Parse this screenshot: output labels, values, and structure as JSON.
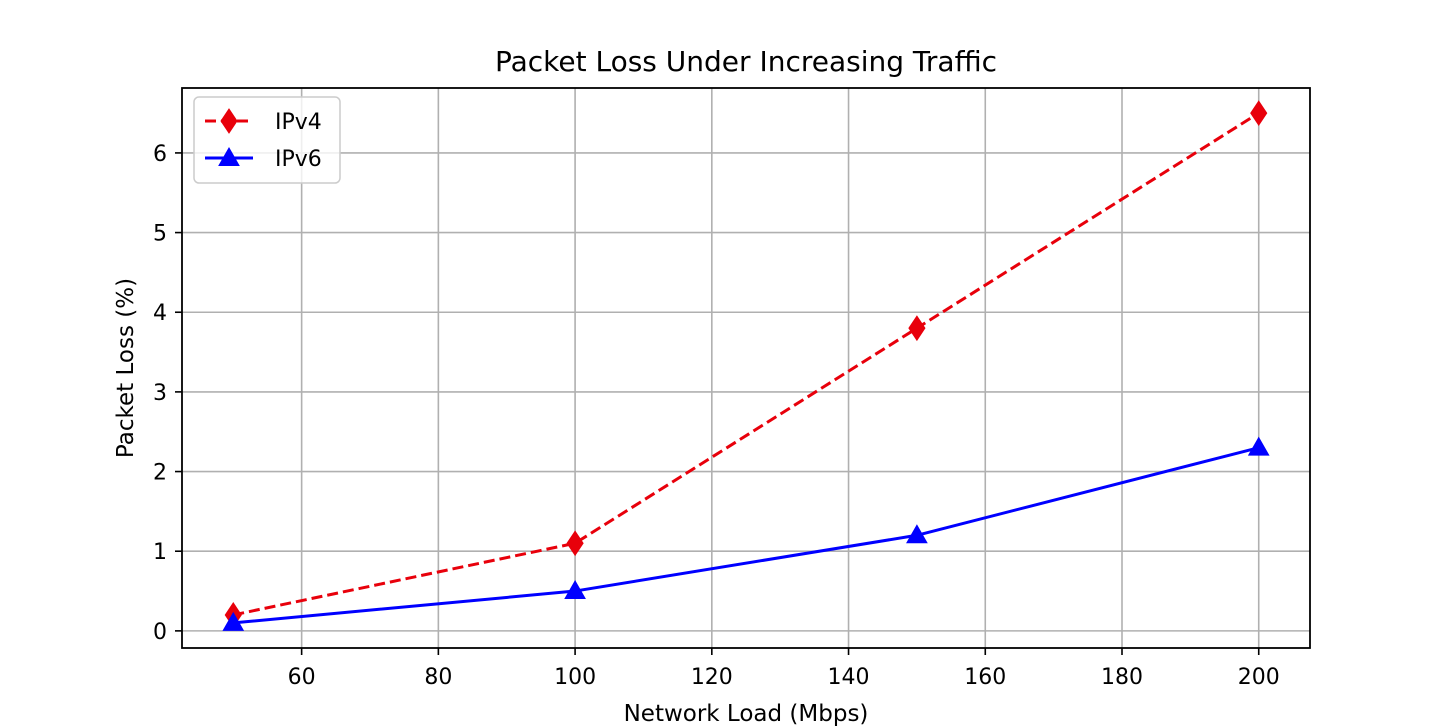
{
  "chart_data": {
    "type": "line",
    "title": "Packet Loss Under Increasing Traffic",
    "xlabel": "Network Load (Mbps)",
    "ylabel": "Packet Loss (%)",
    "x": [
      50,
      100,
      150,
      200
    ],
    "xlim": [
      42.5,
      207.5
    ],
    "ylim": [
      -0.215,
      6.815
    ],
    "xticks": [
      60,
      80,
      100,
      120,
      140,
      160,
      180,
      200
    ],
    "yticks": [
      0,
      1,
      2,
      3,
      4,
      5,
      6
    ],
    "grid": true,
    "legend_position": "top-left",
    "series": [
      {
        "name": "IPv4",
        "values": [
          0.2,
          1.1,
          3.8,
          6.5
        ],
        "color": "#e8000b",
        "line_style": "dashed",
        "marker": "diamond"
      },
      {
        "name": "IPv6",
        "values": [
          0.1,
          0.5,
          1.2,
          2.3
        ],
        "color": "#0000ff",
        "line_style": "solid",
        "marker": "triangle-up"
      }
    ]
  }
}
